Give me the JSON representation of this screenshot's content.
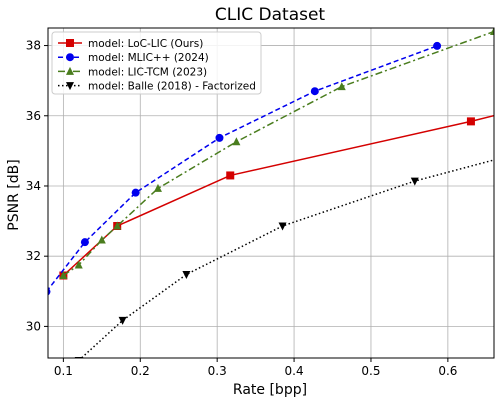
{
  "chart_data": {
    "type": "line",
    "title": "CLIC Dataset",
    "xlabel": "Rate [bpp]",
    "ylabel": "PSNR [dB]",
    "xlim": [
      0.08,
      0.66
    ],
    "ylim": [
      29.1,
      38.5
    ],
    "xticks": [
      0.1,
      0.2,
      0.3,
      0.4,
      0.5,
      0.6
    ],
    "xtick_labels": [
      "0.1",
      "0.2",
      "0.3",
      "0.4",
      "0.5",
      "0.6"
    ],
    "yticks": [
      30,
      32,
      34,
      36,
      38
    ],
    "ytick_labels": [
      "30",
      "32",
      "34",
      "36",
      "38"
    ],
    "grid": true,
    "legend_position": "top-left",
    "series": [
      {
        "name": "model: LoC-LIC (Ours)",
        "color": "#d40000",
        "line_style": "solid",
        "marker": "square",
        "x": [
          0.1,
          0.17,
          0.317,
          0.63,
          0.67
        ],
        "y": [
          31.45,
          32.86,
          34.3,
          35.84,
          36.06
        ]
      },
      {
        "name": "model: MLIC++ (2024)",
        "color": "#0000ee",
        "line_style": "dashed",
        "marker": "circle",
        "x": [
          0.078,
          0.128,
          0.194,
          0.303,
          0.427,
          0.586
        ],
        "y": [
          30.99,
          32.4,
          33.81,
          35.37,
          36.7,
          37.99
        ]
      },
      {
        "name": "model: LIC-TCM (2023)",
        "color": "#4a7d1e",
        "line_style": "dashdot",
        "marker": "triangle-up",
        "x": [
          0.1,
          0.12,
          0.15,
          0.17,
          0.223,
          0.325,
          0.462,
          0.66
        ],
        "y": [
          31.45,
          31.75,
          32.46,
          32.86,
          33.93,
          35.26,
          36.83,
          38.4
        ]
      },
      {
        "name": "model: Balle (2018) - Factorized",
        "color": "#000000",
        "line_style": "dotted",
        "marker": "triangle-down",
        "x": [
          0.12,
          0.177,
          0.26,
          0.385,
          0.557,
          0.67
        ],
        "y": [
          29.03,
          30.17,
          31.48,
          32.86,
          34.14,
          34.8
        ]
      }
    ]
  }
}
